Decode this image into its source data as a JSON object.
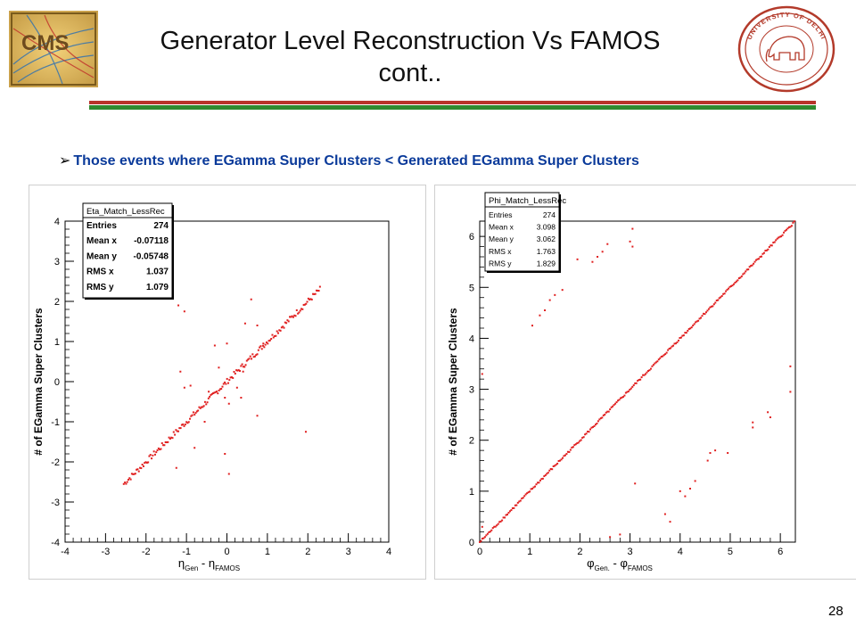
{
  "slide": {
    "title_line1": "Generator Level Reconstruction Vs FAMOS",
    "title_line2": "cont..",
    "bullet_marker": "➢",
    "bullet_text": "Those events where EGamma Super Clusters < Generated EGamma Super Clusters",
    "page_number": "28",
    "logo_left": "CMS",
    "logo_right_text": "UNIVERSITY OF DELHI",
    "colors": {
      "rule_red": "#b8332a",
      "rule_green": "#2f8a2f",
      "marker_red": "#e02020",
      "bullet_blue": "#0a3a9a"
    }
  },
  "chart_data": [
    {
      "type": "scatter",
      "stats_title": "Eta_Match_LessRec",
      "stats": [
        {
          "label": "Entries",
          "value": "274"
        },
        {
          "label": "Mean x",
          "value": "-0.07118"
        },
        {
          "label": "Mean y",
          "value": "-0.05748"
        },
        {
          "label": "RMS x",
          "value": "1.037"
        },
        {
          "label": "RMS y",
          "value": "1.079"
        }
      ],
      "xlabel_sym": "η",
      "xlabel_sub1": "Gen",
      "xlabel_mid": " - η",
      "xlabel_sub2": "FAMOS",
      "ylabel": "# of EGamma Super Clusters",
      "xlim": [
        -4,
        4
      ],
      "ylim": [
        -4,
        4
      ],
      "xticks": [
        "-4",
        "-3",
        "-2",
        "-1",
        "0",
        "1",
        "2",
        "3",
        "4"
      ],
      "yticks": [
        "-4",
        "-3",
        "-2",
        "-1",
        "0",
        "1",
        "2",
        "3",
        "4"
      ],
      "grid": false,
      "line_points": {
        "x_start": -2.55,
        "x_end": 2.3,
        "count": 170,
        "jitter": 0.07
      },
      "points": [
        [
          -1.2,
          1.9
        ],
        [
          -1.05,
          1.75
        ],
        [
          0.6,
          2.05
        ],
        [
          0.45,
          1.45
        ],
        [
          0.9,
          0.95
        ],
        [
          -0.3,
          0.9
        ],
        [
          0.0,
          0.95
        ],
        [
          0.75,
          1.4
        ],
        [
          -1.15,
          0.25
        ],
        [
          -1.05,
          -0.15
        ],
        [
          -0.9,
          -0.1
        ],
        [
          0.05,
          -0.55
        ],
        [
          -0.05,
          -0.4
        ],
        [
          0.35,
          -0.4
        ],
        [
          0.75,
          -0.85
        ],
        [
          -0.55,
          -1.0
        ],
        [
          -0.8,
          -1.65
        ],
        [
          -0.05,
          -1.8
        ],
        [
          0.05,
          -2.3
        ],
        [
          -1.25,
          -2.15
        ],
        [
          1.95,
          -1.25
        ],
        [
          0.4,
          0.25
        ],
        [
          -0.2,
          0.35
        ],
        [
          0.25,
          -0.15
        ],
        [
          -0.45,
          -0.25
        ]
      ]
    },
    {
      "type": "scatter",
      "stats_title": "Phi_Match_LessRec",
      "stats": [
        {
          "label": "Entries",
          "value": "274"
        },
        {
          "label": "Mean x",
          "value": "3.098"
        },
        {
          "label": "Mean y",
          "value": "3.062"
        },
        {
          "label": "RMS x",
          "value": "1.763"
        },
        {
          "label": "RMS y",
          "value": "1.829"
        }
      ],
      "xlabel_sym": "φ",
      "xlabel_sub1": "Gen.",
      "xlabel_mid": " - φ",
      "xlabel_sub2": "FAMOS",
      "ylabel": "# of EGamma Super Clusters",
      "xlim": [
        0,
        6.3
      ],
      "ylim": [
        0,
        6.3
      ],
      "xticks": [
        "0",
        "1",
        "2",
        "3",
        "4",
        "5",
        "6"
      ],
      "yticks": [
        "0",
        "1",
        "2",
        "3",
        "4",
        "5",
        "6"
      ],
      "grid": false,
      "line_points": {
        "x_start": 0.0,
        "x_end": 6.28,
        "count": 240,
        "jitter": 0.02
      },
      "points": [
        [
          1.05,
          4.25
        ],
        [
          1.2,
          4.45
        ],
        [
          1.3,
          4.55
        ],
        [
          1.4,
          4.75
        ],
        [
          1.5,
          4.85
        ],
        [
          1.65,
          4.95
        ],
        [
          1.95,
          5.55
        ],
        [
          2.25,
          5.5
        ],
        [
          2.35,
          5.6
        ],
        [
          2.45,
          5.7
        ],
        [
          2.55,
          5.85
        ],
        [
          3.0,
          5.9
        ],
        [
          3.05,
          6.15
        ],
        [
          3.05,
          5.8
        ],
        [
          0.05,
          3.3
        ],
        [
          0.05,
          0.3
        ],
        [
          6.2,
          3.45
        ],
        [
          6.2,
          2.95
        ],
        [
          5.45,
          2.35
        ],
        [
          5.45,
          2.25
        ],
        [
          5.75,
          2.55
        ],
        [
          5.8,
          2.45
        ],
        [
          4.55,
          1.6
        ],
        [
          4.6,
          1.75
        ],
        [
          4.7,
          1.8
        ],
        [
          4.95,
          1.75
        ],
        [
          4.0,
          1.0
        ],
        [
          4.1,
          0.9
        ],
        [
          4.2,
          1.05
        ],
        [
          4.3,
          1.2
        ],
        [
          3.7,
          0.55
        ],
        [
          3.8,
          0.4
        ],
        [
          3.1,
          1.15
        ],
        [
          2.8,
          0.15
        ],
        [
          2.6,
          0.1
        ]
      ]
    }
  ]
}
